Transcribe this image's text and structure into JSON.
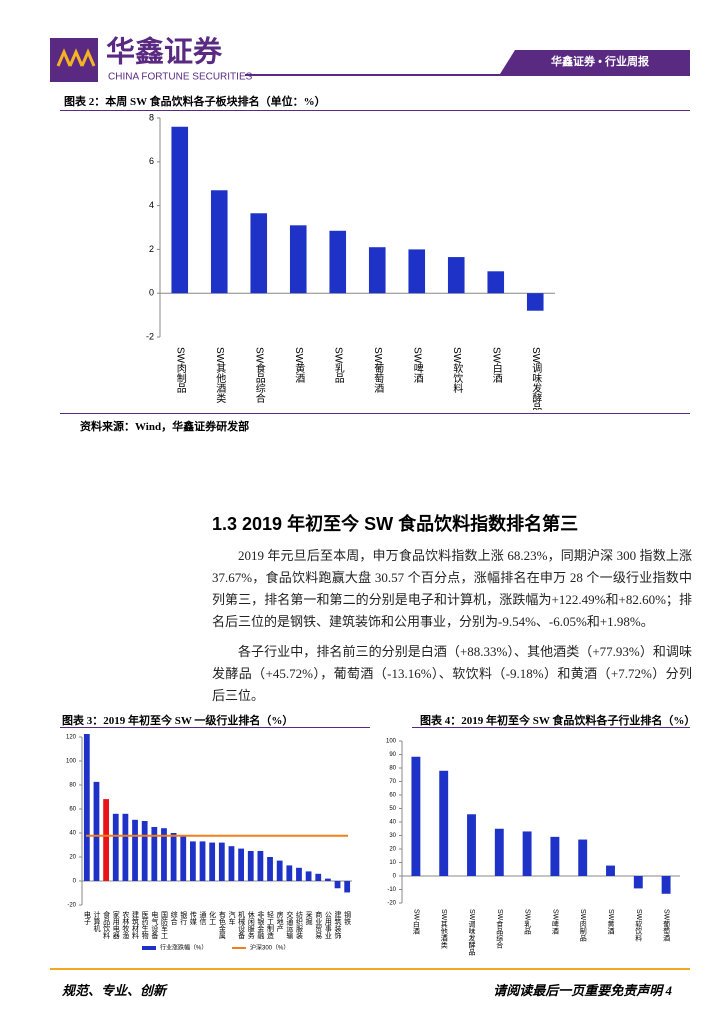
{
  "header": {
    "logo": "华鑫证券",
    "logo_en": "CHINA FORTUNE SECURITIES",
    "tag": "华鑫证券 • 行业周报"
  },
  "figure2_caption": "图表 2：本周 SW 食品饮料各子板块排名（单位：%）",
  "figure2_source": "资料来源：Wind，华鑫证券研发部",
  "section_title": "1.3 2019 年初至今 SW 食品饮料指数排名第三",
  "paragraphs": [
    "2019 年元旦后至本周，申万食品饮料指数上涨 68.23%，同期沪深 300 指数上涨 37.67%，食品饮料跑赢大盘 30.57 个百分点，涨幅排名在申万 28 个一级行业指数中列第三，排名第一和第二的分别是电子和计算机，涨跌幅为+122.49%和+82.60%；排名后三位的是钢铁、建筑装饰和公用事业，分别为-9.54%、-6.05%和+1.98%。",
    "各子行业中，排名前三的分别是白酒（+88.33%）、其他酒类（+77.93%）和调味发酵品（+45.72%），葡萄酒（-13.16%）、软饮料（-9.18%）和黄酒（+7.72%）分列后三位。"
  ],
  "figure3_caption": "图表 3：2019 年初至今 SW 一级行业排名（%）",
  "figure4_caption": "图表 4：2019 年初至今 SW 食品饮料各子行业排名（%）",
  "footer": {
    "left": "规范、专业、创新",
    "right": "请阅读最后一页重要免责声明 4"
  },
  "chart_data": [
    {
      "type": "bar",
      "categories": [
        "SW肉制品",
        "SW其他酒类",
        "SW食品综合",
        "SW黄酒",
        "SW乳品",
        "SW葡萄酒",
        "SW啤酒",
        "SW软饮料",
        "SW白酒",
        "SW调味发酵品"
      ],
      "series": [
        {
          "color": "#1e32c8",
          "values": [
            7.6,
            4.7,
            3.65,
            3.1,
            2.85,
            2.1,
            2.0,
            1.65,
            1.0,
            -0.8
          ]
        }
      ],
      "ylim": [
        -2,
        8
      ],
      "yticks": [
        -2,
        0,
        2,
        4,
        6,
        8
      ]
    },
    {
      "type": "bar",
      "categories": [
        "电子",
        "计算机",
        "食品饮料",
        "家用电器",
        "农林牧渔",
        "建筑材料",
        "医药生物",
        "电气设备",
        "国防军工",
        "综合",
        "银行",
        "传媒",
        "通信",
        "化工",
        "有色金属",
        "汽车",
        "机械设备",
        "休闲服务",
        "非银金融",
        "轻工制造",
        "房地产",
        "交通运输",
        "纺织服装",
        "采掘",
        "商业贸易",
        "公用事业",
        "建筑装饰",
        "钢铁"
      ],
      "series": [
        {
          "name": "行业涨跌幅（%）",
          "color": "#1e32c8",
          "colors": [
            "#1e32c8",
            "#1e32c8",
            "#e8141a",
            "#1e32c8",
            "#1e32c8",
            "#1e32c8",
            "#1e32c8",
            "#1e32c8",
            "#1e32c8",
            "#1e32c8",
            "#1e32c8",
            "#1e32c8",
            "#1e32c8",
            "#1e32c8",
            "#1e32c8",
            "#1e32c8",
            "#1e32c8",
            "#1e32c8",
            "#1e32c8",
            "#1e32c8",
            "#1e32c8",
            "#1e32c8",
            "#1e32c8",
            "#1e32c8",
            "#1e32c8",
            "#1e32c8",
            "#1e32c8",
            "#1e32c8"
          ],
          "values": [
            122.49,
            82.6,
            68.23,
            56,
            56,
            51,
            50,
            45,
            44,
            40,
            38,
            33,
            33,
            32,
            32,
            29,
            27,
            25,
            25,
            20,
            17,
            13,
            11,
            8,
            6,
            1.98,
            -6.05,
            -9.54
          ]
        }
      ],
      "reference_line": {
        "name": "沪深300（%）",
        "value": 37.67,
        "color": "#f07f1e"
      },
      "ylim": [
        -20,
        120
      ],
      "yticks": [
        -20,
        0,
        20,
        40,
        60,
        80,
        100,
        120
      ]
    },
    {
      "type": "bar",
      "categories": [
        "SW白酒",
        "SW其他酒类",
        "SW调味发酵品",
        "SW食品综合",
        "SW乳品",
        "SW啤酒",
        "SW肉制品",
        "SW黄酒",
        "SW软饮料",
        "SW葡萄酒"
      ],
      "series": [
        {
          "color": "#1e32c8",
          "values": [
            88.33,
            77.93,
            45.72,
            35,
            33,
            29,
            27,
            7.72,
            -9.18,
            -13.16
          ]
        }
      ],
      "ylim": [
        -20,
        100
      ],
      "yticks": [
        -20,
        -10,
        0,
        10,
        20,
        30,
        40,
        50,
        60,
        70,
        80,
        90,
        100
      ]
    }
  ]
}
